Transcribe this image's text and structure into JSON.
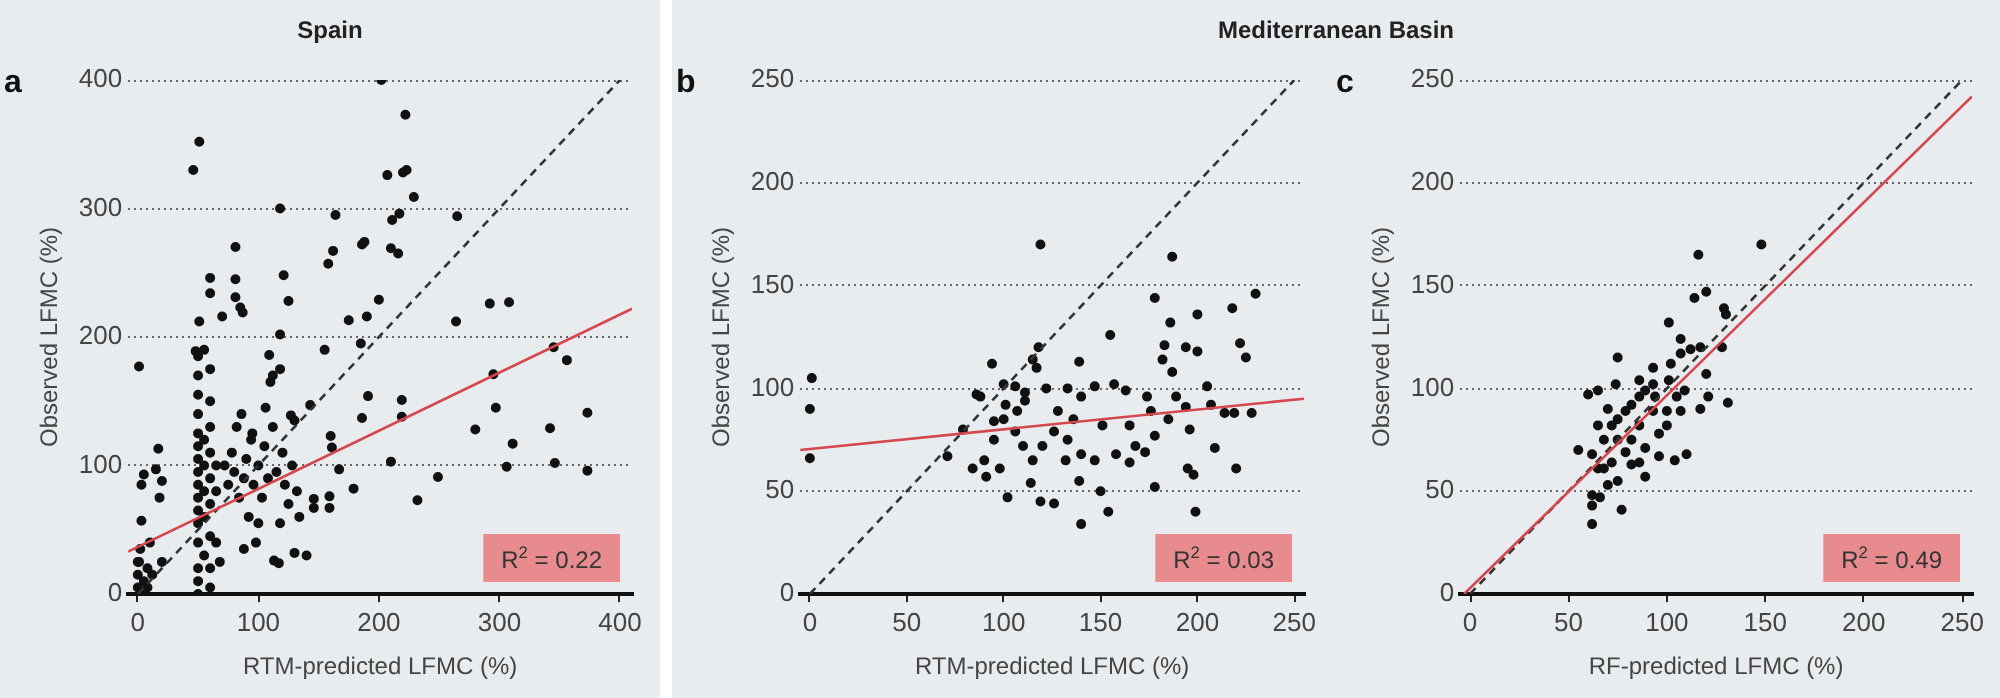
{
  "chart_data": [
    {
      "type": "scatter",
      "title": "Spain",
      "xlabel": "RTM-predicted LFMC (%)",
      "ylabel": "Observed LFMC (%)",
      "annotations": [
        "a",
        "R$^{2}$ = 0.22"
      ],
      "xlim": [
        -8,
        410
      ],
      "ylim": [
        0,
        400
      ],
      "xticks": [
        0,
        100,
        200,
        300,
        400
      ],
      "yticks": [
        0,
        100,
        200,
        300,
        400
      ],
      "grid": "y",
      "series": [
        {
          "marker": "circle",
          "color": "#111111",
          "x": [
            202,
            222,
            51,
            46,
            207,
            223,
            220,
            229,
            118,
            164,
            265,
            211,
            217,
            162,
            158,
            186,
            188,
            210,
            216,
            81,
            121,
            60,
            60,
            81,
            81,
            85,
            87,
            70,
            200,
            125,
            175,
            190,
            264,
            292,
            308,
            51,
            118,
            155,
            185,
            1,
            48,
            109,
            295,
            345,
            356,
            297,
            311,
            342,
            373,
            280,
            346,
            373,
            306,
            249,
            232,
            210,
            219,
            219,
            191,
            186,
            167,
            179,
            160,
            161,
            159,
            159,
            143,
            146,
            146,
            127,
            140,
            130,
            117,
            113,
            1,
            50,
            50,
            50,
            50,
            50,
            50,
            50,
            50,
            50,
            50,
            50,
            50,
            50,
            50,
            50,
            50,
            55,
            55,
            55,
            55,
            55,
            55,
            60,
            60,
            60,
            60,
            60,
            60,
            60,
            60,
            60,
            65,
            65,
            65,
            68,
            0,
            0,
            0,
            2,
            3,
            3,
            5,
            5,
            8,
            10,
            12,
            15,
            17,
            18,
            20,
            20,
            3,
            8,
            72,
            75,
            78,
            80,
            82,
            84,
            86,
            88,
            90,
            92,
            94,
            96,
            98,
            100,
            103,
            105,
            108,
            110,
            112,
            115,
            118,
            120,
            122,
            125,
            128,
            130,
            132,
            134,
            88,
            95,
            100,
            112,
            118,
            106
          ],
          "values": [
            400,
            373,
            352,
            330,
            326,
            330,
            328,
            309,
            300,
            295,
            294,
            291,
            296,
            267,
            257,
            272,
            274,
            269,
            265,
            270,
            248,
            246,
            234,
            245,
            231,
            223,
            219,
            216,
            229,
            228,
            213,
            216,
            212,
            226,
            227,
            212,
            202,
            190,
            195,
            177,
            189,
            186,
            171,
            192,
            182,
            145,
            117,
            129,
            141,
            128,
            102,
            96,
            99,
            91,
            73,
            103,
            151,
            138,
            154,
            137,
            97,
            82,
            123,
            114,
            76,
            67,
            147,
            74,
            67,
            139,
            30,
            32,
            24,
            26,
            25,
            0,
            10,
            20,
            40,
            55,
            65,
            75,
            85,
            95,
            105,
            115,
            125,
            140,
            155,
            170,
            185,
            190,
            120,
            100,
            80,
            60,
            30,
            5,
            20,
            45,
            70,
            90,
            110,
            130,
            150,
            175,
            100,
            80,
            40,
            25,
            5,
            15,
            25,
            35,
            57,
            85,
            93,
            10,
            20,
            40,
            15,
            97,
            113,
            75,
            88,
            25,
            0,
            5,
            100,
            85,
            110,
            95,
            130,
            75,
            140,
            90,
            105,
            60,
            120,
            85,
            40,
            100,
            75,
            115,
            90,
            165,
            130,
            95,
            55,
            110,
            85,
            70,
            100,
            135,
            80,
            60,
            35,
            125,
            55,
            170,
            175,
            145
          ]
        },
        {
          "type": "line",
          "marker": "none",
          "color": "#d4474d",
          "x": [
            -8,
            410
          ],
          "values": [
            33,
            222
          ]
        },
        {
          "type": "line",
          "marker": "none",
          "color": "#333333",
          "line_style": "dashed",
          "x": [
            0,
            400
          ],
          "values": [
            0,
            400
          ]
        }
      ]
    },
    {
      "type": "scatter",
      "title": "Mediterranean Basin",
      "xlabel": "RTM-predicted LFMC (%)",
      "ylabel": "Observed LFMC (%)",
      "annotations": [
        "b",
        "R$^{2}$ = 0.03"
      ],
      "xlim": [
        -5,
        255
      ],
      "ylim": [
        0,
        250
      ],
      "xticks": [
        0,
        50,
        100,
        150,
        200,
        250
      ],
      "yticks": [
        0,
        50,
        100,
        150,
        200,
        250
      ],
      "grid": "y",
      "series": [
        {
          "marker": "circle",
          "color": "#111111",
          "x": [
            119,
            187,
            178,
            230,
            218,
            200,
            155,
            186,
            183,
            194,
            200,
            222,
            225,
            118,
            115,
            117,
            94,
            139,
            182,
            187,
            1,
            0,
            0,
            71,
            79,
            86,
            100,
            106,
            111,
            122,
            133,
            147,
            157,
            163,
            174,
            189,
            205,
            207,
            214,
            219,
            228,
            194,
            185,
            196,
            178,
            173,
            165,
            158,
            147,
            140,
            133,
            126,
            120,
            115,
            110,
            106,
            100,
            95,
            90,
            91,
            102,
            119,
            126,
            139,
            150,
            154,
            140,
            178,
            199,
            198,
            220,
            195,
            209,
            168,
            165,
            107,
            111,
            128,
            136,
            151,
            98,
            114,
            132,
            176,
            140,
            101,
            95,
            88,
            84
          ],
          "values": [
            170,
            164,
            144,
            146,
            139,
            136,
            126,
            132,
            121,
            120,
            118,
            122,
            115,
            120,
            114,
            110,
            112,
            113,
            114,
            108,
            105,
            90,
            66,
            67,
            80,
            97,
            102,
            101,
            98,
            100,
            100,
            101,
            102,
            99,
            96,
            96,
            101,
            92,
            88,
            88,
            88,
            91,
            85,
            80,
            77,
            69,
            64,
            68,
            65,
            68,
            75,
            79,
            72,
            65,
            72,
            79,
            85,
            75,
            65,
            57,
            47,
            45,
            44,
            55,
            50,
            40,
            34,
            52,
            40,
            58,
            61,
            61,
            71,
            72,
            82,
            89,
            94,
            89,
            85,
            82,
            61,
            54,
            65,
            89,
            96,
            92,
            84,
            96,
            61
          ]
        },
        {
          "type": "line",
          "marker": "none",
          "color": "#d4474d",
          "x": [
            -5,
            255
          ],
          "values": [
            70,
            95
          ]
        },
        {
          "type": "line",
          "marker": "none",
          "color": "#333333",
          "line_style": "dashed",
          "x": [
            0,
            250
          ],
          "values": [
            0,
            250
          ]
        }
      ]
    },
    {
      "type": "scatter",
      "xlabel": "RF-predicted LFMC (%)",
      "ylabel": "Observed LFMC (%)",
      "annotations": [
        "c",
        "R$^{2}$ = 0.49"
      ],
      "xlim": [
        -5,
        255
      ],
      "ylim": [
        0,
        250
      ],
      "xticks": [
        0,
        50,
        100,
        150,
        200,
        250
      ],
      "yticks": [
        0,
        50,
        100,
        150,
        200,
        250
      ],
      "grid": "y",
      "series": [
        {
          "marker": "circle",
          "color": "#111111",
          "x": [
            148,
            116,
            120,
            114,
            129,
            130,
            101,
            75,
            117,
            128,
            107,
            102,
            120,
            131,
            121,
            117,
            110,
            104,
            96,
            89,
            82,
            75,
            70,
            62,
            62,
            62,
            77,
            55,
            62,
            60,
            65,
            74,
            86,
            93,
            101,
            109,
            72,
            79,
            86,
            93,
            100,
            75,
            82,
            89,
            96,
            68,
            65,
            72,
            79,
            86,
            100,
            107,
            93,
            86,
            105,
            107,
            112,
            68,
            82,
            75,
            70,
            65,
            66,
            94,
            89
          ],
          "values": [
            170,
            165,
            147,
            144,
            139,
            136,
            132,
            115,
            120,
            120,
            117,
            112,
            107,
            93,
            96,
            90,
            68,
            65,
            67,
            57,
            63,
            55,
            53,
            48,
            43,
            34,
            41,
            70,
            68,
            97,
            99,
            102,
            104,
            102,
            104,
            99,
            82,
            89,
            82,
            89,
            82,
            75,
            75,
            71,
            78,
            75,
            82,
            64,
            69,
            64,
            89,
            89,
            110,
            96,
            96,
            124,
            119,
            61,
            92,
            85,
            90,
            61,
            47,
            96,
            99
          ]
        },
        {
          "type": "line",
          "marker": "none",
          "color": "#d4474d",
          "x": [
            -3,
            255
          ],
          "values": [
            0,
            242
          ]
        },
        {
          "type": "line",
          "marker": "none",
          "color": "#333333",
          "line_style": "dashed",
          "x": [
            0,
            250
          ],
          "values": [
            0,
            250
          ]
        }
      ]
    }
  ]
}
